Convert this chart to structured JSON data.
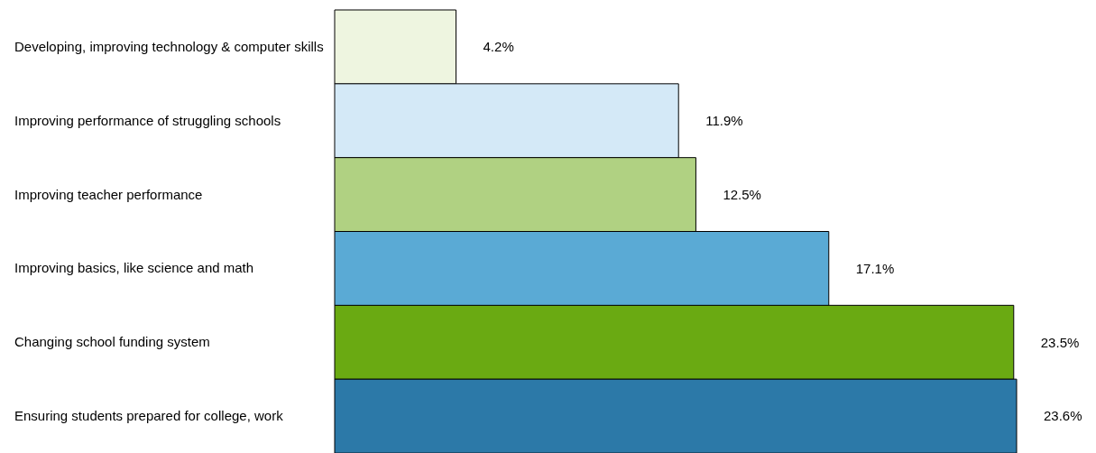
{
  "chart_data": {
    "type": "bar",
    "orientation": "horizontal",
    "categories": [
      "Developing, improving technology & computer skills",
      "Improving performance of struggling schools",
      "Improving teacher performance",
      "Improving basics, like science and math",
      "Changing school funding system",
      "Ensuring students prepared for college, work"
    ],
    "values": [
      4.2,
      11.9,
      12.5,
      17.1,
      23.5,
      23.6
    ],
    "value_labels": [
      "4.2%",
      "11.9%",
      "12.5%",
      "17.1%",
      "23.5%",
      "23.6%"
    ],
    "colors": [
      "#eef5e0",
      "#d4e9f7",
      "#b0d182",
      "#5aaad5",
      "#6aaa12",
      "#2c79a8"
    ]
  }
}
